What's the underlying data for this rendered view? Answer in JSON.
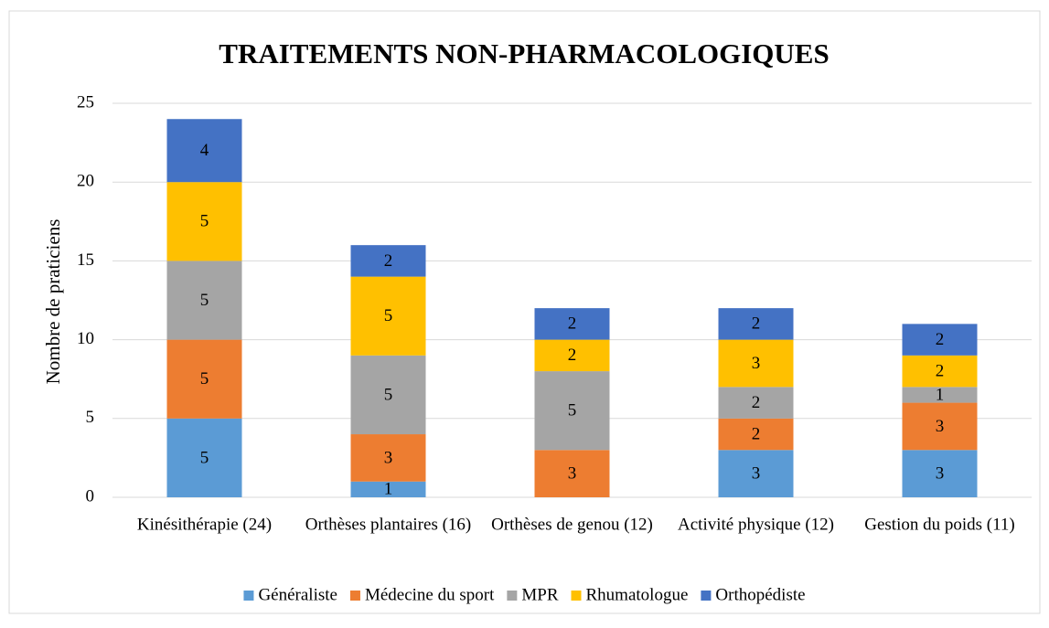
{
  "chart_data": {
    "type": "stacked_bar",
    "title": "TRAITEMENTS NON-PHARMACOLOGIQUES",
    "y_label": "Nombre de praticiens",
    "categories": [
      "Kinésithérapie (24)",
      "Orthèses plantaires (16)",
      "Orthèses de genou (12)",
      "Activité physique (12)",
      "Gestion du poids (11)"
    ],
    "series": [
      {
        "name": "Généraliste",
        "color": "#5b9bd5",
        "values": [
          5,
          1,
          0,
          3,
          3
        ]
      },
      {
        "name": "Médecine du sport",
        "color": "#ed7d31",
        "values": [
          5,
          3,
          3,
          2,
          3
        ]
      },
      {
        "name": "MPR",
        "color": "#a5a5a5",
        "values": [
          5,
          5,
          5,
          2,
          1
        ]
      },
      {
        "name": "Rhumatologue",
        "color": "#ffc000",
        "values": [
          5,
          5,
          2,
          3,
          2
        ]
      },
      {
        "name": "Orthopédiste",
        "color": "#4472c4",
        "values": [
          4,
          2,
          2,
          2,
          2
        ]
      }
    ],
    "ylim": [
      0,
      25
    ],
    "yticks": [
      0,
      5,
      10,
      15,
      20,
      25
    ],
    "grid": true,
    "legend": "bottom"
  }
}
